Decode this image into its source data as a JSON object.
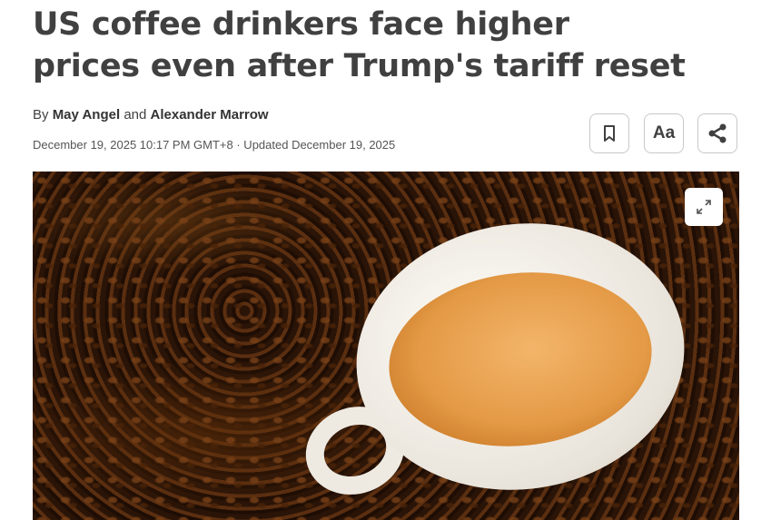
{
  "article": {
    "headline": "US coffee drinkers face higher prices even after Trump's tariff reset",
    "byline_prefix": "By",
    "author1": "May Angel",
    "byline_and": "and",
    "author2": "Alexander Marrow",
    "dateline": "December 19, 2025 10:17 PM GMT+8 · Updated December 19, 2025"
  },
  "toolbar": {
    "bookmark_icon": "bookmark-icon",
    "text_size_label": "Aa",
    "share_icon": "share-icon"
  },
  "photo": {
    "expand_icon": "expand-icon"
  }
}
